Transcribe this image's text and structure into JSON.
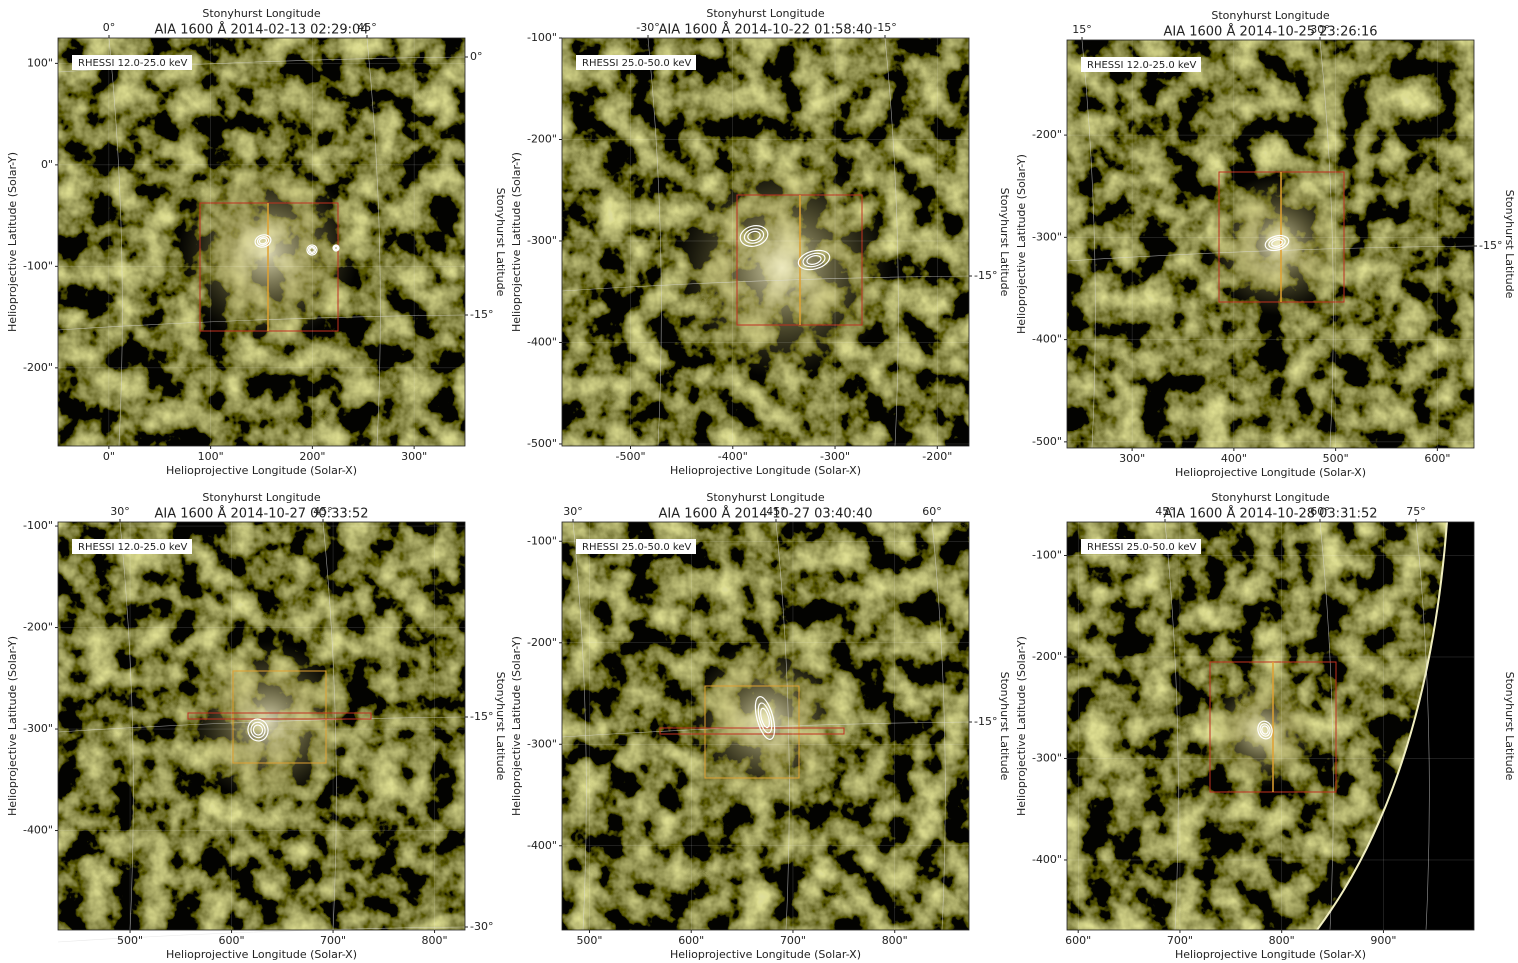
{
  "chart_data": [
    {
      "type": "image",
      "title": "AIA 1600 Å 2014-02-13 02:29:04",
      "legend": "RHESSI 12.0-25.0 keV",
      "top_label": "Stonyhurst Longitude",
      "xlabel": "Helioprojective Longitude (Solar-X)",
      "ylabel": "Helioprojective Latitude (Solar-Y)",
      "right_label": "Stonyhurst Latitude",
      "xlim": [
        -50,
        350
      ],
      "ylim": [
        -277,
        125
      ],
      "xticks": [
        {
          "value": 0,
          "label": "0\""
        },
        {
          "value": 100,
          "label": "100\""
        },
        {
          "value": 200,
          "label": "200\""
        },
        {
          "value": 300,
          "label": "300\""
        }
      ],
      "yticks": [
        {
          "value": 100,
          "label": "100\""
        },
        {
          "value": 0,
          "label": "0\""
        },
        {
          "value": -100,
          "label": "-100\""
        },
        {
          "value": -200,
          "label": "-200\""
        }
      ],
      "top_ticks": [
        {
          "value": 0,
          "label": "0°"
        },
        {
          "value": 45,
          "label": "45°"
        }
      ],
      "right_ticks": [
        {
          "value": 0,
          "label": "0°"
        },
        {
          "value": -15,
          "label": "-15°"
        }
      ]
    },
    {
      "type": "image",
      "title": "AIA 1600 Å 2014-10-22 01:58:40",
      "legend": "RHESSI 25.0-50.0 keV",
      "top_label": "Stonyhurst Longitude",
      "xlabel": "Helioprojective Longitude (Solar-X)",
      "ylabel": "Helioprojective Latitude (Solar-Y)",
      "right_label": "Stonyhurst Latitude",
      "xlim": [
        -567,
        -169
      ],
      "ylim": [
        -502,
        -100
      ],
      "xticks": [
        {
          "value": -500,
          "label": "-500\""
        },
        {
          "value": -400,
          "label": "-400\""
        },
        {
          "value": -300,
          "label": "-300\""
        },
        {
          "value": -200,
          "label": "-200\""
        }
      ],
      "yticks": [
        {
          "value": -100,
          "label": "-100\""
        },
        {
          "value": -200,
          "label": "-200\""
        },
        {
          "value": -300,
          "label": "-300\""
        },
        {
          "value": -400,
          "label": "-400\""
        },
        {
          "value": -500,
          "label": "-500\""
        }
      ],
      "top_ticks": [
        {
          "value": -30,
          "label": "-30°"
        },
        {
          "value": -15,
          "label": "-15°"
        }
      ],
      "right_ticks": [
        {
          "value": -15,
          "label": "-15°"
        }
      ]
    },
    {
      "type": "image",
      "title": "AIA 1600 Å 2014-10-25 23:26:16",
      "legend": "RHESSI 12.0-25.0 keV",
      "top_label": "Stonyhurst Longitude",
      "xlabel": "Helioprojective Longitude (Solar-X)",
      "ylabel": "Helioprojective Latitude (Solar-Y)",
      "right_label": "Stonyhurst Latitude",
      "xlim": [
        236,
        636
      ],
      "ylim": [
        -506,
        -107
      ],
      "xticks": [
        {
          "value": 300,
          "label": "300\""
        },
        {
          "value": 400,
          "label": "400\""
        },
        {
          "value": 500,
          "label": "500\""
        },
        {
          "value": 600,
          "label": "600\""
        }
      ],
      "yticks": [
        {
          "value": -200,
          "label": "-200\""
        },
        {
          "value": -300,
          "label": "-300\""
        },
        {
          "value": -400,
          "label": "-400\""
        },
        {
          "value": -500,
          "label": "-500\""
        }
      ],
      "top_ticks": [
        {
          "value": 15,
          "label": "15°"
        },
        {
          "value": 30,
          "label": "30°"
        }
      ],
      "right_ticks": [
        {
          "value": -15,
          "label": "-15°"
        }
      ]
    },
    {
      "type": "image",
      "title": "AIA 1600 Å 2014-10-27 00:33:52",
      "legend": "RHESSI 12.0-25.0 keV",
      "top_label": "Stonyhurst Longitude",
      "xlabel": "Helioprojective Longitude (Solar-X)",
      "ylabel": "Helioprojective Latitude (Solar-Y)",
      "right_label": "Stonyhurst Latitude",
      "xlim": [
        429,
        830
      ],
      "ylim": [
        -498,
        -96
      ],
      "xticks": [
        {
          "value": 500,
          "label": "500\""
        },
        {
          "value": 600,
          "label": "600\""
        },
        {
          "value": 700,
          "label": "700\""
        },
        {
          "value": 800,
          "label": "800\""
        }
      ],
      "yticks": [
        {
          "value": -100,
          "label": "-100\""
        },
        {
          "value": -200,
          "label": "-200\""
        },
        {
          "value": -300,
          "label": "-300\""
        },
        {
          "value": -400,
          "label": "-400\""
        }
      ],
      "top_ticks": [
        {
          "value": 30,
          "label": "30°"
        },
        {
          "value": 45,
          "label": "45°"
        }
      ],
      "right_ticks": [
        {
          "value": -15,
          "label": "-15°"
        },
        {
          "value": -30,
          "label": "-30°"
        }
      ]
    },
    {
      "type": "image",
      "title": "AIA 1600 Å 2014-10-27 03:40:40",
      "legend": "RHESSI 25.0-50.0 keV",
      "top_label": "Stonyhurst Longitude",
      "xlabel": "Helioprojective Longitude (Solar-X)",
      "ylabel": "Helioprojective Latitude (Solar-Y)",
      "right_label": "Stonyhurst Latitude",
      "xlim": [
        473,
        873
      ],
      "ylim": [
        -483,
        -81
      ],
      "xticks": [
        {
          "value": 500,
          "label": "500\""
        },
        {
          "value": 600,
          "label": "600\""
        },
        {
          "value": 700,
          "label": "700\""
        },
        {
          "value": 800,
          "label": "800\""
        }
      ],
      "yticks": [
        {
          "value": -100,
          "label": "-100\""
        },
        {
          "value": -200,
          "label": "-200\""
        },
        {
          "value": -300,
          "label": "-300\""
        },
        {
          "value": -400,
          "label": "-400\""
        }
      ],
      "top_ticks": [
        {
          "value": 30,
          "label": "30°"
        },
        {
          "value": 45,
          "label": "45°"
        },
        {
          "value": 60,
          "label": "60°"
        }
      ],
      "right_ticks": [
        {
          "value": -15,
          "label": "-15°"
        }
      ]
    },
    {
      "type": "image",
      "title": "AIA 1600 Å 2014-10-28 03:31:52",
      "legend": "RHESSI 25.0-50.0 keV",
      "top_label": "Stonyhurst Longitude",
      "xlabel": "Helioprojective Longitude (Solar-X)",
      "ylabel": "Helioprojective Latitude (Solar-Y)",
      "right_label": "Stonyhurst Latitude",
      "xlim": [
        589,
        989
      ],
      "ylim": [
        -469,
        -67
      ],
      "xticks": [
        {
          "value": 600,
          "label": "600\""
        },
        {
          "value": 700,
          "label": "700\""
        },
        {
          "value": 800,
          "label": "800\""
        },
        {
          "value": 900,
          "label": "900\""
        }
      ],
      "yticks": [
        {
          "value": -100,
          "label": "-100\""
        },
        {
          "value": -200,
          "label": "-200\""
        },
        {
          "value": -300,
          "label": "-300\""
        },
        {
          "value": -400,
          "label": "-400\""
        }
      ],
      "top_ticks": [
        {
          "value": 45,
          "label": "45°"
        },
        {
          "value": 60,
          "label": "60°"
        },
        {
          "value": 75,
          "label": "75°"
        }
      ],
      "right_ticks": []
    }
  ]
}
